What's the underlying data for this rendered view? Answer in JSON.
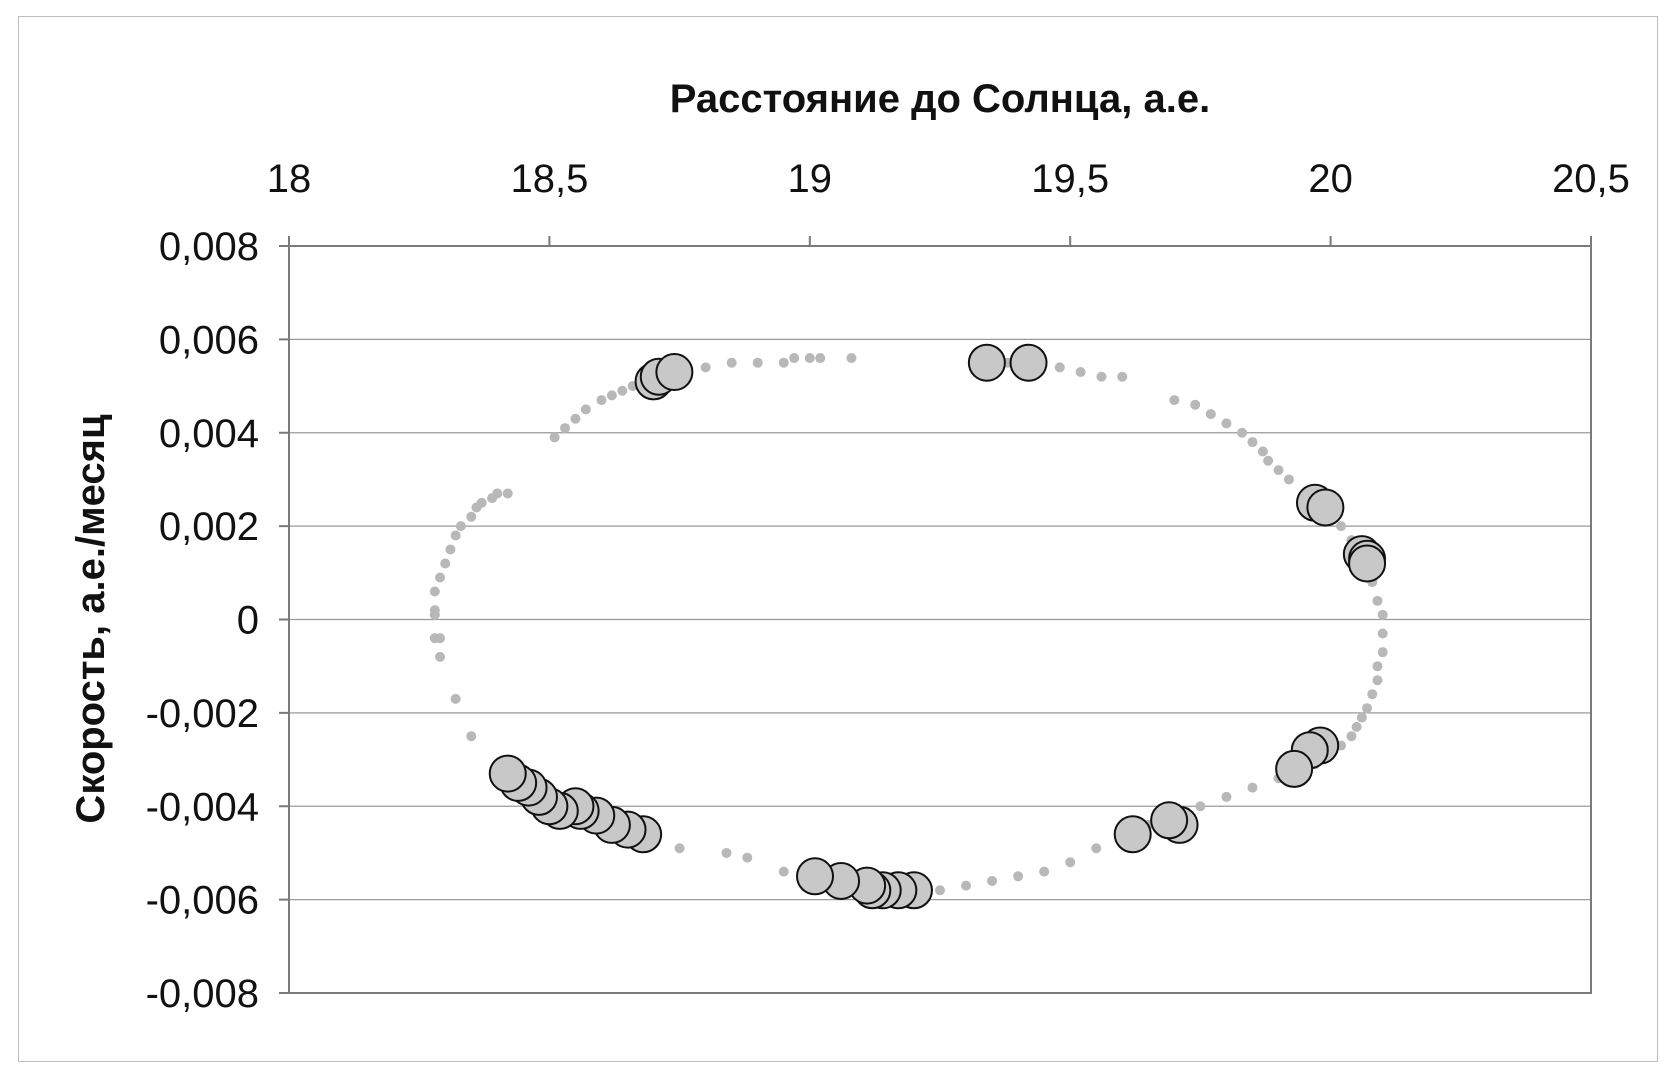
{
  "chart_data": {
    "type": "scatter",
    "xlabel": "Расстояние до Солнца, а.е.",
    "ylabel": "Скорость, а.е./месяц",
    "xlim": [
      18,
      20.5
    ],
    "ylim": [
      -0.008,
      0.008
    ],
    "x_ticks": [
      18,
      18.5,
      19,
      19.5,
      20,
      20.5
    ],
    "x_tick_labels": [
      "18",
      "18,5",
      "19",
      "19,5",
      "20",
      "20,5"
    ],
    "y_ticks": [
      0.008,
      0.006,
      0.004,
      0.002,
      0,
      -0.002,
      -0.004,
      -0.006,
      -0.008
    ],
    "y_tick_labels": [
      "0,008",
      "0,006",
      "0,004",
      "0,002",
      "0",
      "-0,002",
      "-0,004",
      "-0,006",
      "-0,008"
    ],
    "x_axis_position": "top",
    "grid": "horizontal",
    "legend": "none",
    "colors": {
      "small_points": "#b8b8b8",
      "large_points_fill": "#c8c8c8",
      "large_points_stroke": "#111111",
      "grid": "#9a9a9a"
    },
    "series": [
      {
        "marker": "small",
        "x": [
          18.28,
          18.28,
          18.28,
          18.29,
          18.29,
          18.3,
          18.31,
          18.32,
          18.33,
          18.35,
          18.36,
          18.37,
          18.39,
          18.4,
          18.42,
          18.51,
          18.53,
          18.55,
          18.57,
          18.6,
          18.62,
          18.64,
          18.66,
          18.75,
          18.8,
          18.85,
          18.9,
          18.95,
          18.97,
          19.0,
          19.02,
          19.08,
          19.33,
          19.38,
          19.43,
          19.48,
          19.52,
          19.56,
          19.6,
          19.7,
          19.74,
          19.77,
          19.8,
          19.83,
          19.85,
          19.87,
          19.88,
          19.9,
          19.92,
          19.95,
          20.0,
          20.02,
          20.04,
          20.06,
          20.07,
          20.08,
          20.09,
          20.1,
          20.1,
          20.1,
          20.09,
          20.09,
          20.08,
          20.07,
          20.06,
          20.05,
          20.04,
          20.02,
          20.0,
          19.97,
          19.9,
          19.85,
          19.8,
          19.75,
          19.7,
          19.65,
          19.6,
          19.55,
          19.5,
          19.45,
          19.4,
          19.35,
          19.3,
          19.25,
          19.2,
          19.15,
          19.1,
          19.05,
          19.0,
          18.95,
          18.88,
          18.84,
          18.75,
          18.7,
          18.65,
          18.6,
          18.55,
          18.5,
          18.47,
          18.45,
          18.43,
          18.41,
          18.35,
          18.32,
          18.29,
          18.28
        ],
        "y": [
          0.0002,
          0.0006,
          -0.0004,
          0.0009,
          -0.0008,
          0.0012,
          0.0015,
          0.0018,
          0.002,
          0.0022,
          0.0024,
          0.0025,
          0.0026,
          0.0027,
          0.0027,
          0.0039,
          0.0041,
          0.0043,
          0.0045,
          0.0047,
          0.0048,
          0.0049,
          0.005,
          0.0053,
          0.0054,
          0.0055,
          0.0055,
          0.0055,
          0.0056,
          0.0056,
          0.0056,
          0.0056,
          0.0055,
          0.0055,
          0.0055,
          0.0054,
          0.0053,
          0.0052,
          0.0052,
          0.0047,
          0.0046,
          0.0044,
          0.0042,
          0.004,
          0.0038,
          0.0036,
          0.0034,
          0.0032,
          0.003,
          0.0027,
          0.0023,
          0.002,
          0.0017,
          0.0014,
          0.001,
          0.0008,
          0.0004,
          0.0001,
          -0.0003,
          -0.0007,
          -0.001,
          -0.0013,
          -0.0016,
          -0.0019,
          -0.0021,
          -0.0023,
          -0.0025,
          -0.0027,
          -0.0029,
          -0.0031,
          -0.0034,
          -0.0036,
          -0.0038,
          -0.004,
          -0.0042,
          -0.0044,
          -0.0047,
          -0.0049,
          -0.0052,
          -0.0054,
          -0.0055,
          -0.0056,
          -0.0057,
          -0.0058,
          -0.0058,
          -0.0058,
          -0.0058,
          -0.0057,
          -0.0056,
          -0.0054,
          -0.0051,
          -0.005,
          -0.0049,
          -0.0048,
          -0.0046,
          -0.0044,
          -0.0042,
          -0.004,
          -0.0038,
          -0.0036,
          -0.0034,
          -0.0032,
          -0.0025,
          -0.0017,
          -0.0004,
          0.0001
        ]
      },
      {
        "marker": "large",
        "x": [
          18.7,
          18.71,
          18.74,
          19.34,
          19.42,
          19.97,
          19.99,
          20.06,
          20.07,
          20.07,
          19.98,
          19.96,
          19.93,
          19.71,
          19.69,
          19.62,
          19.2,
          19.17,
          19.14,
          19.12,
          19.11,
          19.06,
          19.01,
          18.68,
          18.65,
          18.62,
          18.59,
          18.56,
          18.55,
          18.52,
          18.5,
          18.48,
          18.46,
          18.44,
          18.42
        ],
        "y": [
          0.0051,
          0.0052,
          0.0053,
          0.0055,
          0.0055,
          0.0025,
          0.0024,
          0.0014,
          0.0013,
          0.0012,
          -0.0027,
          -0.0028,
          -0.0032,
          -0.0044,
          -0.0043,
          -0.0046,
          -0.0058,
          -0.0058,
          -0.0058,
          -0.0058,
          -0.0057,
          -0.0056,
          -0.0055,
          -0.0046,
          -0.0045,
          -0.0044,
          -0.0042,
          -0.0041,
          -0.004,
          -0.0041,
          -0.004,
          -0.0038,
          -0.0036,
          -0.0035,
          -0.0033
        ]
      }
    ]
  }
}
